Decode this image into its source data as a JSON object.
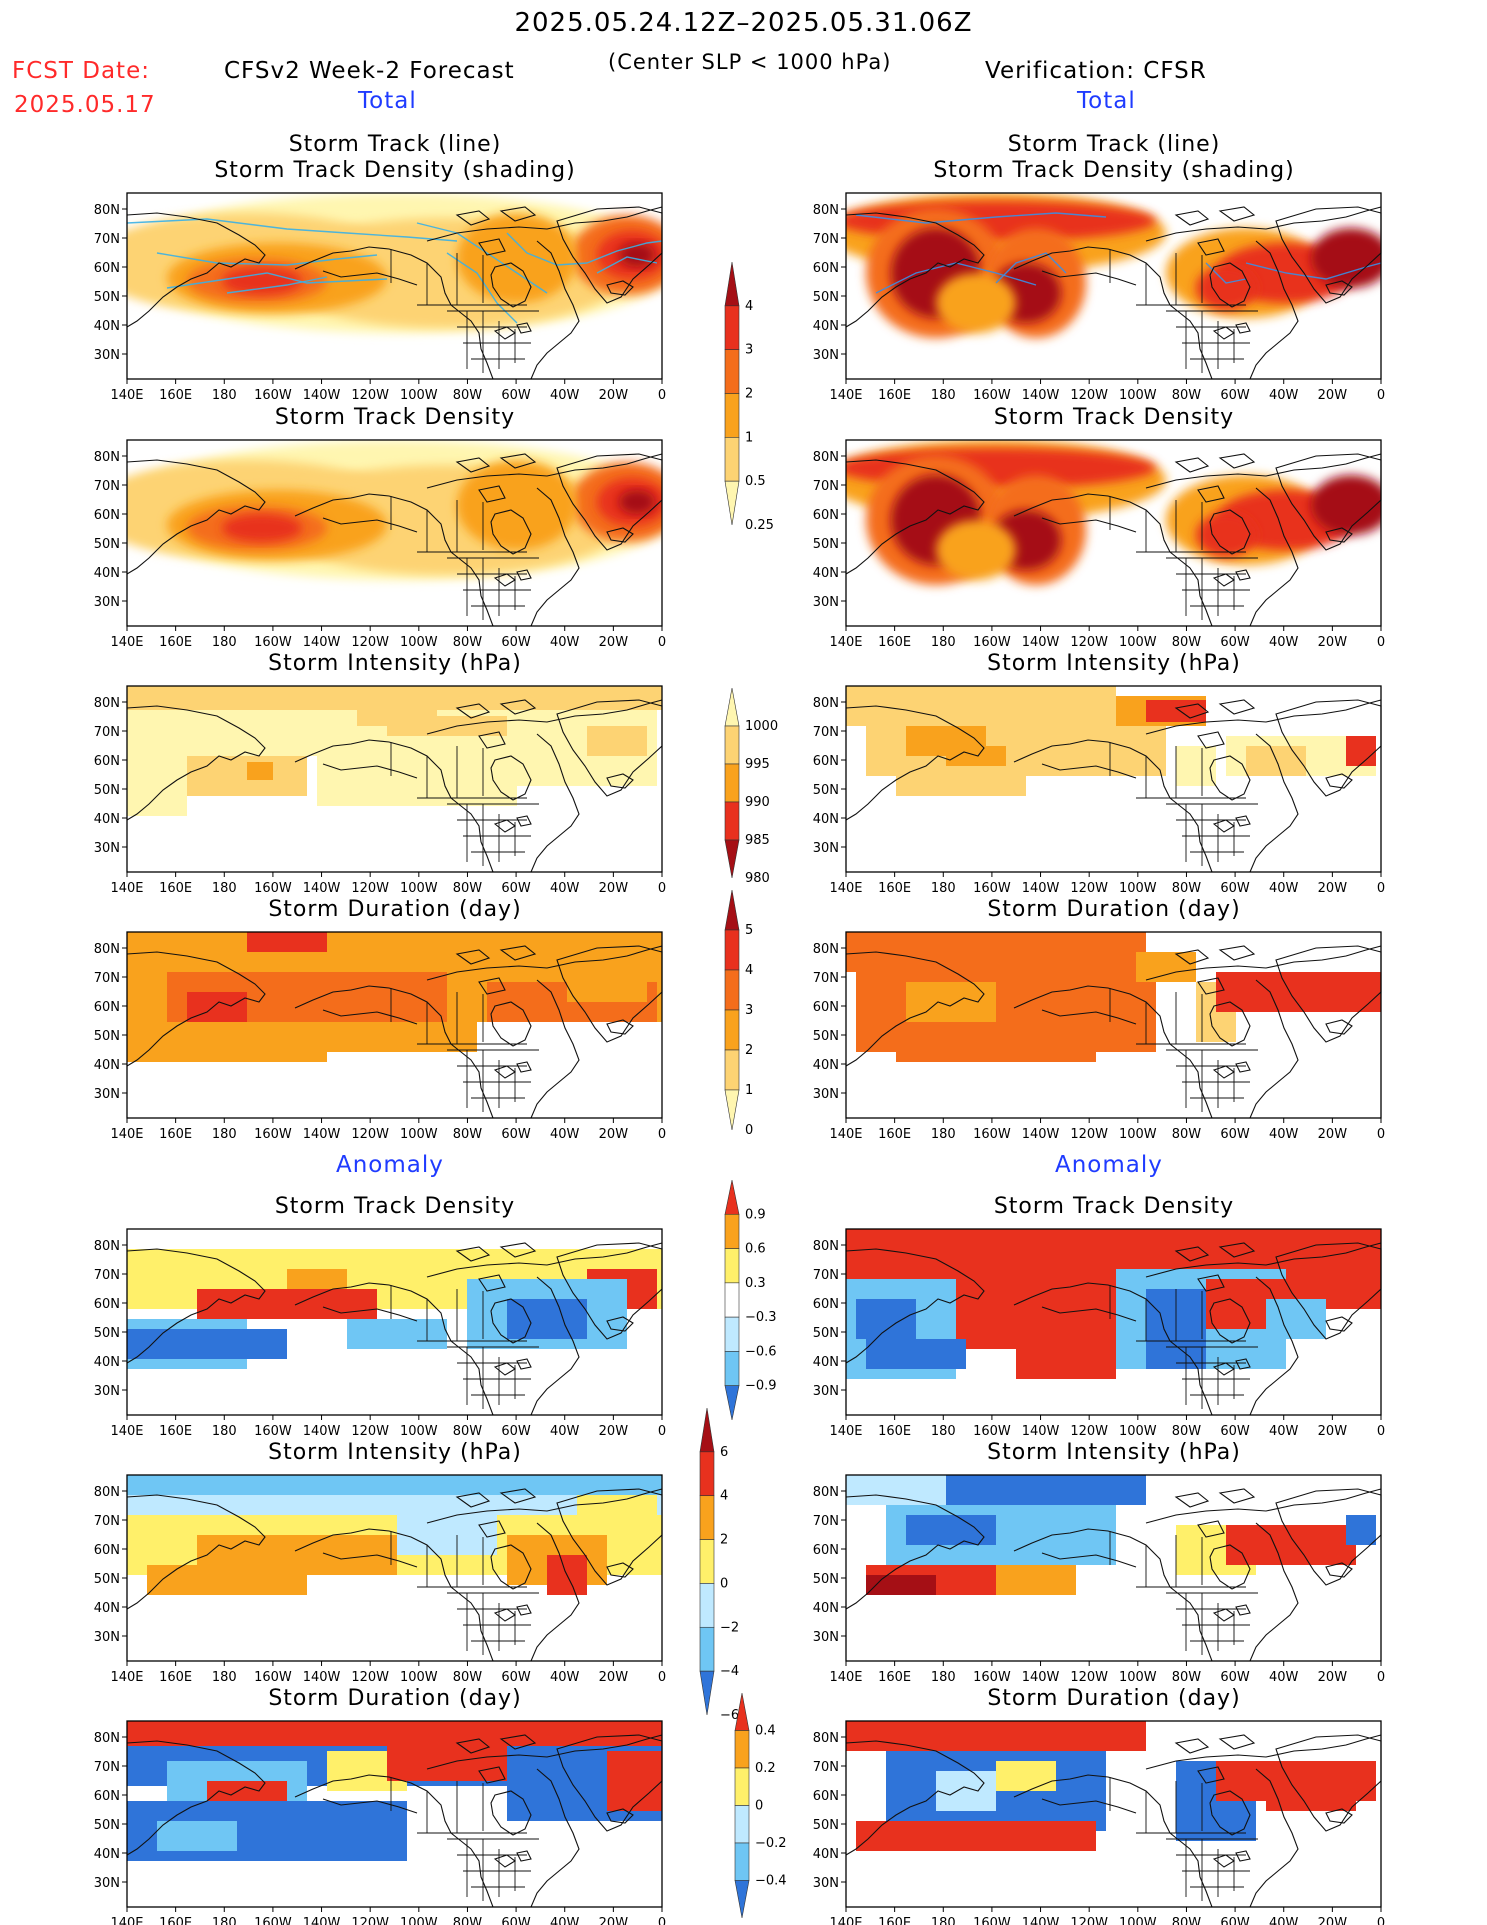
{
  "header": {
    "period": "2025.05.24.12Z–2025.05.31.06Z",
    "fcst_label": "FCST Date:",
    "fcst_date": "2025.05.17",
    "model": "CFSv2 Week-2 Forecast",
    "criterion": "(Center SLP < 1000 hPa)",
    "verification": "Verification: CFSR"
  },
  "sections": {
    "total": "Total",
    "anomaly": "Anomaly"
  },
  "panel_titles": {
    "track_line": "Storm Track (line)",
    "track_shading": "Storm Track Density (shading)",
    "density": "Storm Track Density",
    "intensity": "Storm Intensity (hPa)",
    "duration": "Storm Duration (day)"
  },
  "axes": {
    "lon_labels": [
      "140E",
      "160E",
      "180",
      "160W",
      "140W",
      "120W",
      "100W",
      "80W",
      "60W",
      "40W",
      "20W",
      "0"
    ],
    "lat_labels": [
      "80N",
      "70N",
      "60N",
      "50N",
      "40N",
      "30N"
    ]
  },
  "colorbars": {
    "density_total": {
      "labels": [
        "4",
        "3",
        "2",
        "1",
        "0.5",
        "0.25"
      ],
      "colors": [
        "#a50f15",
        "#e8311e",
        "#f46d1b",
        "#f9a21d",
        "#fdd373",
        "#fff6b0"
      ]
    },
    "intensity_total": {
      "labels": [
        "1000",
        "995",
        "990",
        "985",
        "980"
      ],
      "colors": [
        "#fff6b0",
        "#fdd373",
        "#f9a21d",
        "#e8311e",
        "#a50f15"
      ]
    },
    "duration_total": {
      "labels": [
        "5",
        "4",
        "3",
        "2",
        "1",
        "0"
      ],
      "colors": [
        "#a50f15",
        "#e8311e",
        "#f46d1b",
        "#f9a21d",
        "#fdd373",
        "#fff6b0"
      ]
    },
    "density_anom": {
      "labels": [
        "0.9",
        "0.6",
        "0.3",
        "−0.3",
        "−0.6",
        "−0.9"
      ],
      "colors": [
        "#e8311e",
        "#f9a21d",
        "#fff06a",
        "#ffffff",
        "#bfe9ff",
        "#6fc6f4",
        "#2f74d9"
      ]
    },
    "intensity_anom": {
      "labels": [
        "6",
        "4",
        "2",
        "0",
        "−2",
        "−4",
        "−6"
      ],
      "colors": [
        "#a50f15",
        "#e8311e",
        "#f9a21d",
        "#fff06a",
        "#bfe9ff",
        "#6fc6f4",
        "#2f74d9"
      ]
    },
    "duration_anom": {
      "labels": [
        "0.4",
        "0.2",
        "0",
        "−0.2",
        "−0.4"
      ],
      "colors": [
        "#e8311e",
        "#f9a21d",
        "#fff06a",
        "#bfe9ff",
        "#6fc6f4",
        "#2f74d9"
      ]
    }
  }
}
